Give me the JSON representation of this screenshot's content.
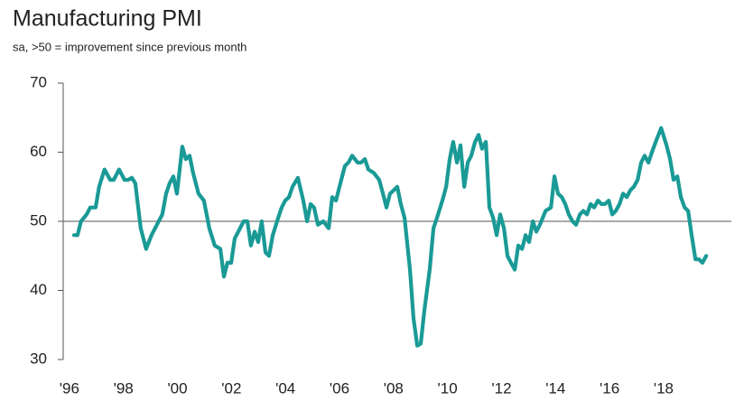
{
  "chart_data": {
    "type": "line",
    "title": "Manufacturing PMI",
    "subtitle": "sa, >50 = improvement since previous month",
    "xlim": [
      1995.77,
      2020.51
    ],
    "ylim": [
      30,
      70
    ],
    "yticks": [
      30,
      40,
      50,
      60,
      70
    ],
    "xticks": [
      {
        "value": 1996,
        "label": "'96"
      },
      {
        "value": 1998,
        "label": "'98"
      },
      {
        "value": 2000,
        "label": "'00"
      },
      {
        "value": 2002,
        "label": "'02"
      },
      {
        "value": 2004,
        "label": "'04"
      },
      {
        "value": 2006,
        "label": "'06"
      },
      {
        "value": 2008,
        "label": "'08"
      },
      {
        "value": 2010,
        "label": "'10"
      },
      {
        "value": 2012,
        "label": "'12"
      },
      {
        "value": 2014,
        "label": "'14"
      },
      {
        "value": 2016,
        "label": "'16"
      },
      {
        "value": 2018,
        "label": "'18"
      }
    ],
    "reference_line": 50,
    "grid": false,
    "series": [
      {
        "color": "#1a9a96",
        "x": [
          1996.17,
          1996.3,
          1996.43,
          1996.64,
          1996.77,
          1996.97,
          1997.1,
          1997.3,
          1997.51,
          1997.64,
          1997.84,
          1998.04,
          1998.17,
          1998.31,
          1998.44,
          1998.64,
          1998.84,
          1999.04,
          1999.24,
          1999.44,
          1999.58,
          1999.71,
          1999.85,
          1999.98,
          2000.18,
          2000.31,
          2000.45,
          2000.58,
          2000.78,
          2000.98,
          2001.18,
          2001.38,
          2001.59,
          2001.72,
          2001.85,
          2001.99,
          2002.12,
          2002.32,
          2002.45,
          2002.59,
          2002.72,
          2002.86,
          2002.99,
          2003.12,
          2003.26,
          2003.39,
          2003.53,
          2003.73,
          2003.86,
          2003.99,
          2004.13,
          2004.26,
          2004.46,
          2004.66,
          2004.8,
          2004.93,
          2005.06,
          2005.2,
          2005.4,
          2005.6,
          2005.73,
          2005.87,
          2006.0,
          2006.2,
          2006.33,
          2006.47,
          2006.67,
          2006.8,
          2006.94,
          2007.07,
          2007.27,
          2007.47,
          2007.61,
          2007.74,
          2007.87,
          2008.01,
          2008.14,
          2008.27,
          2008.41,
          2008.61,
          2008.74,
          2008.88,
          2009.01,
          2009.14,
          2009.34,
          2009.48,
          2009.61,
          2009.81,
          2009.95,
          2010.08,
          2010.21,
          2010.35,
          2010.48,
          2010.62,
          2010.75,
          2010.88,
          2011.02,
          2011.15,
          2011.28,
          2011.42,
          2011.55,
          2011.69,
          2011.82,
          2011.95,
          2012.09,
          2012.22,
          2012.35,
          2012.49,
          2012.62,
          2012.76,
          2012.89,
          2013.02,
          2013.16,
          2013.29,
          2013.42,
          2013.63,
          2013.83,
          2013.96,
          2014.09,
          2014.23,
          2014.36,
          2014.49,
          2014.63,
          2014.76,
          2014.9,
          2015.03,
          2015.16,
          2015.3,
          2015.43,
          2015.57,
          2015.7,
          2015.83,
          2015.97,
          2016.1,
          2016.23,
          2016.37,
          2016.5,
          2016.64,
          2016.77,
          2016.9,
          2017.04,
          2017.17,
          2017.3,
          2017.44,
          2017.57,
          2017.71,
          2017.91,
          2018.11,
          2018.24,
          2018.37,
          2018.51,
          2018.64,
          2018.78,
          2018.91,
          2019.04,
          2019.18,
          2019.31,
          2019.44,
          2019.58
        ],
        "values": [
          48,
          48,
          50,
          51,
          52,
          52,
          55,
          57.5,
          56,
          56,
          57.5,
          56,
          56,
          56.3,
          55.5,
          49,
          46,
          48,
          49.5,
          51,
          54,
          55.5,
          56.5,
          54,
          60.8,
          59,
          59.5,
          57,
          54,
          53,
          49,
          46.5,
          46,
          42,
          44,
          44,
          47.5,
          49,
          50,
          50,
          46.5,
          48.5,
          47,
          50,
          45.5,
          45,
          48,
          50.5,
          52,
          53,
          53.5,
          55,
          56.3,
          53,
          50,
          52.5,
          52,
          49.5,
          50,
          49,
          53.5,
          53,
          55,
          58,
          58.5,
          59.5,
          58.5,
          58.5,
          59,
          57.5,
          57,
          56,
          54,
          52,
          54,
          54.5,
          55,
          52.5,
          50.5,
          43,
          36,
          32,
          32.3,
          37,
          43,
          49,
          50.5,
          53,
          55,
          59,
          61.5,
          58.5,
          61,
          55,
          58.5,
          59.5,
          61.5,
          62.5,
          60.5,
          61.5,
          52,
          50.5,
          48,
          51,
          49,
          45,
          44,
          43,
          46.5,
          46,
          48,
          47,
          50,
          48.5,
          49.5,
          51.5,
          52,
          56.5,
          54,
          53.5,
          52.5,
          51,
          50,
          49.5,
          51,
          51.5,
          51,
          52.5,
          52,
          53,
          52.5,
          52.5,
          53,
          51,
          51.5,
          52.5,
          54,
          53.5,
          54.5,
          55,
          56,
          58.5,
          59.5,
          58.5,
          60,
          61.5,
          63.5,
          61,
          59,
          56,
          56.5,
          53.5,
          52,
          51.5,
          48,
          44.5,
          44.5,
          44,
          45
        ]
      }
    ]
  }
}
